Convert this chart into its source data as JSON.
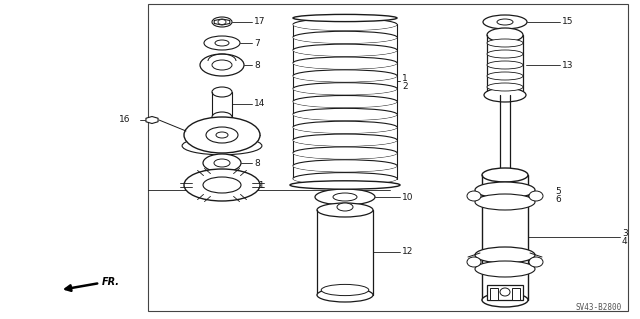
{
  "bg_color": "#ffffff",
  "line_color": "#1a1a1a",
  "border_color": "#444444",
  "watermark": "SV43-B2800",
  "figsize": [
    6.4,
    3.19
  ],
  "dpi": 100
}
